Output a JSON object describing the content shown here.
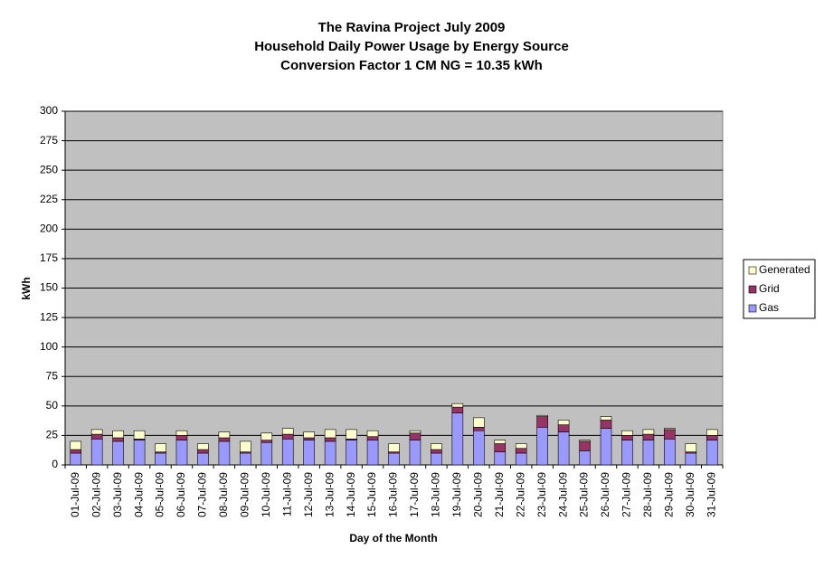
{
  "chart_data": {
    "type": "stacked_bar",
    "title": [
      "The Ravina Project July 2009",
      "Household Daily Power Usage by Energy Source",
      "Conversion Factor 1 CM NG = 10.35 kWh"
    ],
    "x_label": "Day of the Month",
    "y_label": "kWh",
    "categories": [
      "01-Jul-09",
      "02-Jul-09",
      "03-Jul-09",
      "04-Jul-09",
      "05-Jul-09",
      "06-Jul-09",
      "07-Jul-09",
      "08-Jul-09",
      "09-Jul-09",
      "10-Jul-09",
      "11-Jul-09",
      "12-Jul-09",
      "13-Jul-09",
      "14-Jul-09",
      "15-Jul-09",
      "16-Jul-09",
      "17-Jul-09",
      "18-Jul-09",
      "19-Jul-09",
      "20-Jul-09",
      "21-Jul-09",
      "22-Jul-09",
      "23-Jul-09",
      "24-Jul-09",
      "25-Jul-09",
      "26-Jul-09",
      "27-Jul-09",
      "28-Jul-09",
      "29-Jul-09",
      "30-Jul-09",
      "31-Jul-09"
    ],
    "series": [
      {
        "name": "Gas",
        "color": "#9999ff",
        "values": [
          10,
          22,
          20,
          21,
          10,
          21,
          10,
          20,
          10,
          19,
          22,
          21,
          20,
          21,
          21,
          10,
          21,
          10,
          44,
          29,
          11,
          10,
          32,
          28,
          12,
          31,
          21,
          21,
          22,
          10,
          21
        ]
      },
      {
        "name": "Grid",
        "color": "#993366",
        "values": [
          3,
          4,
          3,
          1,
          1,
          4,
          3,
          3,
          1,
          2,
          4,
          2,
          3,
          1,
          3,
          1,
          6,
          3,
          5,
          3,
          7,
          4,
          9,
          6,
          8,
          7,
          4,
          5,
          8,
          1,
          4
        ]
      },
      {
        "name": "Generated",
        "color": "#ffffcc",
        "values": [
          7,
          4,
          6,
          7,
          7,
          4,
          5,
          5,
          9,
          6,
          5,
          5,
          7,
          8,
          5,
          7,
          2,
          5,
          3,
          8,
          3,
          4,
          1,
          4,
          1,
          3,
          4,
          4,
          1,
          7,
          5
        ]
      }
    ],
    "ylim": [
      0,
      300
    ],
    "yticks": [
      0,
      25,
      50,
      75,
      100,
      125,
      150,
      175,
      200,
      225,
      250,
      275,
      300
    ],
    "grid": true,
    "legend": "right",
    "plot_background": "#c0c0c0"
  }
}
